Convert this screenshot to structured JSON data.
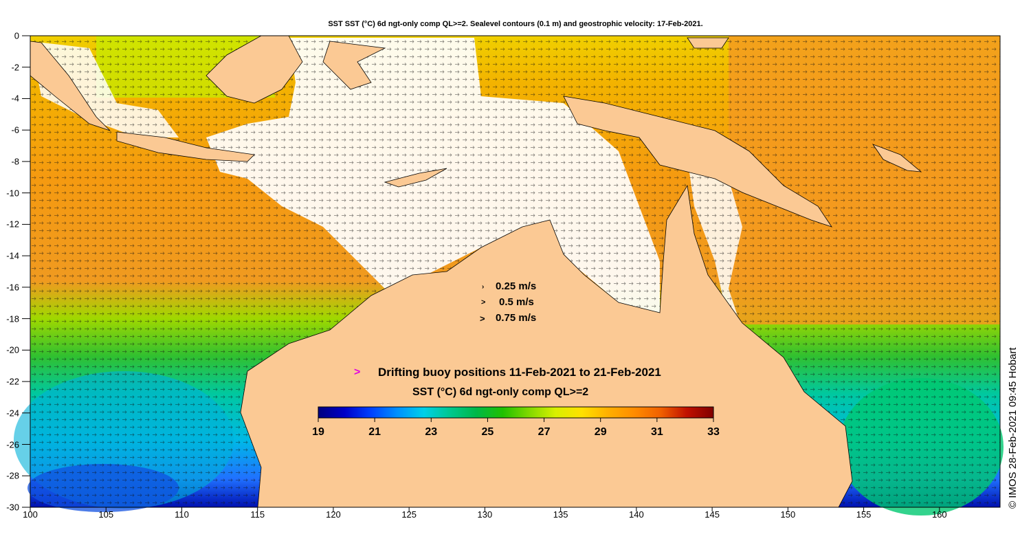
{
  "title": "SST SST (°C) 6d ngt-only comp QL>=2. Sealevel contours (0.1 m) and geostrophic velocity: 17-Feb-2021.",
  "axes": {
    "lat_ticks": [
      "0",
      "-2",
      "-4",
      "-6",
      "-8",
      "-10",
      "-12",
      "-14",
      "-16",
      "-18",
      "-20",
      "-22",
      "-24",
      "-26",
      "-28",
      "-30"
    ],
    "lon_ticks": [
      "100",
      "105",
      "110",
      "115",
      "120",
      "125",
      "130",
      "135",
      "140",
      "145",
      "150",
      "155",
      "160"
    ],
    "lat_range": [
      -30,
      0
    ],
    "lon_range": [
      100,
      164
    ]
  },
  "velocity_legend": [
    {
      "label": "0.25 m/s",
      "marker": "›"
    },
    {
      "label": "0.5 m/s",
      "marker": ">"
    },
    {
      "label": "0.75 m/s",
      "marker": ">"
    }
  ],
  "buoy_legend": {
    "marker": ">",
    "label": "Drifting buoy positions 11-Feb-2021 to 21-Feb-2021"
  },
  "colorbar": {
    "title": "SST (°C) 6d ngt-only comp QL>=2",
    "ticks": [
      "19",
      "21",
      "23",
      "25",
      "27",
      "29",
      "31",
      "33"
    ],
    "range": [
      19,
      33
    ]
  },
  "credit": "© IMOS 28-Feb-2021 09:45 Hobart",
  "colors": {
    "land": "#fbc994",
    "no_data": "#ffffff",
    "buoy": "#e000e0",
    "colormap": [
      "#00007f",
      "#0000c8",
      "#0040ff",
      "#0090ff",
      "#00d0e8",
      "#00c890",
      "#00b848",
      "#20c000",
      "#80d800",
      "#d8f000",
      "#ffe000",
      "#ffb000",
      "#ff8c00",
      "#f06000",
      "#c01000",
      "#800000"
    ]
  }
}
